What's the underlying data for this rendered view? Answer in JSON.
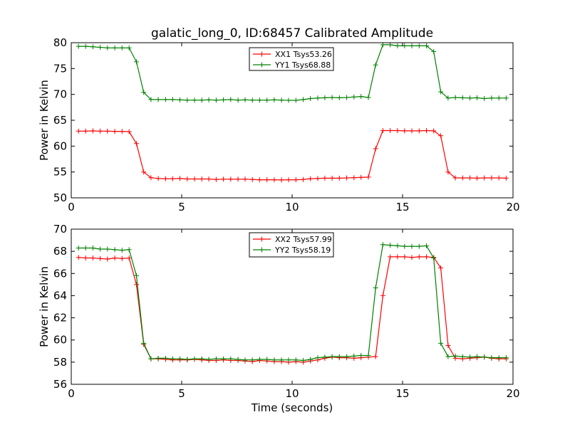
{
  "chart_data": [
    {
      "type": "line",
      "title": "galatic_long_0, ID:68457 Calibrated Amplitude",
      "xlabel": "",
      "ylabel": "Power in Kelvin",
      "xlim": [
        0,
        20
      ],
      "ylim": [
        50,
        80
      ],
      "xticks": [
        0,
        5,
        10,
        15,
        20
      ],
      "yticks": [
        50,
        55,
        60,
        65,
        70,
        75,
        80
      ],
      "legend_position": "upper center",
      "x": [
        0.33,
        0.65,
        0.98,
        1.31,
        1.64,
        1.97,
        2.3,
        2.62,
        2.95,
        3.28,
        3.61,
        3.94,
        4.27,
        4.59,
        4.92,
        5.25,
        5.58,
        5.91,
        6.23,
        6.56,
        6.89,
        7.22,
        7.55,
        7.87,
        8.2,
        8.53,
        8.86,
        9.19,
        9.52,
        9.84,
        10.17,
        10.5,
        10.83,
        11.16,
        11.48,
        11.81,
        12.14,
        12.47,
        12.8,
        13.12,
        13.45,
        13.78,
        14.11,
        14.44,
        14.77,
        15.09,
        15.42,
        15.75,
        16.08,
        16.41,
        16.73,
        17.06,
        17.39,
        17.72,
        18.05,
        18.37,
        18.7,
        19.03,
        19.36,
        19.69
      ],
      "series": [
        {
          "name": "XX1 Tsys53.26",
          "color": "#ff0000",
          "values": [
            62.9,
            62.9,
            62.95,
            62.9,
            62.9,
            62.85,
            62.85,
            62.8,
            60.5,
            55.0,
            53.9,
            53.75,
            53.7,
            53.7,
            53.75,
            53.65,
            53.65,
            53.65,
            53.65,
            53.55,
            53.6,
            53.6,
            53.6,
            53.6,
            53.55,
            53.5,
            53.5,
            53.5,
            53.45,
            53.5,
            53.5,
            53.55,
            53.7,
            53.75,
            53.8,
            53.8,
            53.8,
            53.85,
            53.9,
            53.95,
            54.0,
            59.5,
            63.0,
            63.0,
            63.0,
            62.95,
            62.95,
            62.95,
            63.0,
            62.95,
            62.0,
            55.0,
            53.85,
            53.85,
            53.85,
            53.8,
            53.85,
            53.85,
            53.85,
            53.8
          ]
        },
        {
          "name": "YY1 Tsys68.88",
          "color": "#008000",
          "values": [
            79.3,
            79.3,
            79.2,
            79.1,
            79.0,
            79.0,
            79.0,
            79.0,
            76.3,
            70.4,
            69.0,
            69.0,
            69.0,
            69.0,
            68.95,
            68.9,
            68.9,
            68.9,
            68.95,
            68.9,
            68.95,
            69.0,
            68.9,
            68.95,
            68.9,
            68.9,
            68.9,
            68.95,
            68.9,
            68.85,
            68.85,
            69.0,
            69.2,
            69.3,
            69.35,
            69.4,
            69.35,
            69.4,
            69.5,
            69.6,
            69.4,
            75.7,
            79.6,
            79.6,
            79.4,
            79.4,
            79.4,
            79.4,
            79.4,
            78.3,
            70.5,
            69.3,
            69.4,
            69.35,
            69.3,
            69.35,
            69.2,
            69.3,
            69.3,
            69.3
          ]
        }
      ]
    },
    {
      "type": "line",
      "title": "",
      "xlabel": "Time (seconds)",
      "ylabel": "Power in Kelvin",
      "xlim": [
        0,
        20
      ],
      "ylim": [
        56,
        70
      ],
      "xticks": [
        0,
        5,
        10,
        15,
        20
      ],
      "yticks": [
        56,
        58,
        60,
        62,
        64,
        66,
        68,
        70
      ],
      "legend_position": "upper center",
      "x": [
        0.33,
        0.65,
        0.98,
        1.31,
        1.64,
        1.97,
        2.3,
        2.62,
        2.95,
        3.28,
        3.61,
        3.94,
        4.27,
        4.59,
        4.92,
        5.25,
        5.58,
        5.91,
        6.23,
        6.56,
        6.89,
        7.22,
        7.55,
        7.87,
        8.2,
        8.53,
        8.86,
        9.19,
        9.52,
        9.84,
        10.17,
        10.5,
        10.83,
        11.16,
        11.48,
        11.81,
        12.14,
        12.47,
        12.8,
        13.12,
        13.45,
        13.78,
        14.11,
        14.44,
        14.77,
        15.09,
        15.42,
        15.75,
        16.08,
        16.41,
        16.73,
        17.06,
        17.39,
        17.72,
        18.05,
        18.37,
        18.7,
        19.03,
        19.36,
        19.69
      ],
      "series": [
        {
          "name": "XX2 Tsys57.99",
          "color": "#ff0000",
          "values": [
            67.45,
            67.4,
            67.4,
            67.35,
            67.3,
            67.4,
            67.35,
            67.4,
            65.0,
            59.6,
            58.3,
            58.3,
            58.25,
            58.2,
            58.2,
            58.2,
            58.25,
            58.2,
            58.15,
            58.15,
            58.2,
            58.15,
            58.15,
            58.1,
            58.05,
            58.15,
            58.1,
            58.05,
            58.05,
            58.0,
            58.05,
            58.0,
            58.1,
            58.2,
            58.35,
            58.45,
            58.4,
            58.4,
            58.35,
            58.4,
            58.45,
            58.5,
            64.0,
            67.5,
            67.5,
            67.5,
            67.45,
            67.5,
            67.5,
            67.45,
            66.5,
            59.5,
            58.35,
            58.3,
            58.35,
            58.4,
            58.45,
            58.35,
            58.3,
            58.3
          ]
        },
        {
          "name": "YY2 Tsys58.19",
          "color": "#008000",
          "values": [
            68.3,
            68.3,
            68.3,
            68.2,
            68.2,
            68.15,
            68.1,
            68.15,
            65.8,
            59.7,
            58.3,
            58.35,
            58.35,
            58.3,
            58.3,
            58.25,
            58.3,
            58.3,
            58.25,
            58.3,
            58.3,
            58.3,
            58.25,
            58.2,
            58.2,
            58.25,
            58.25,
            58.2,
            58.2,
            58.2,
            58.2,
            58.15,
            58.25,
            58.4,
            58.45,
            58.5,
            58.5,
            58.5,
            58.55,
            58.6,
            58.6,
            64.7,
            68.6,
            68.55,
            68.5,
            68.45,
            68.45,
            68.45,
            68.5,
            67.4,
            59.7,
            58.5,
            58.55,
            58.5,
            58.45,
            58.5,
            58.45,
            58.4,
            58.4,
            58.4
          ]
        }
      ]
    }
  ]
}
